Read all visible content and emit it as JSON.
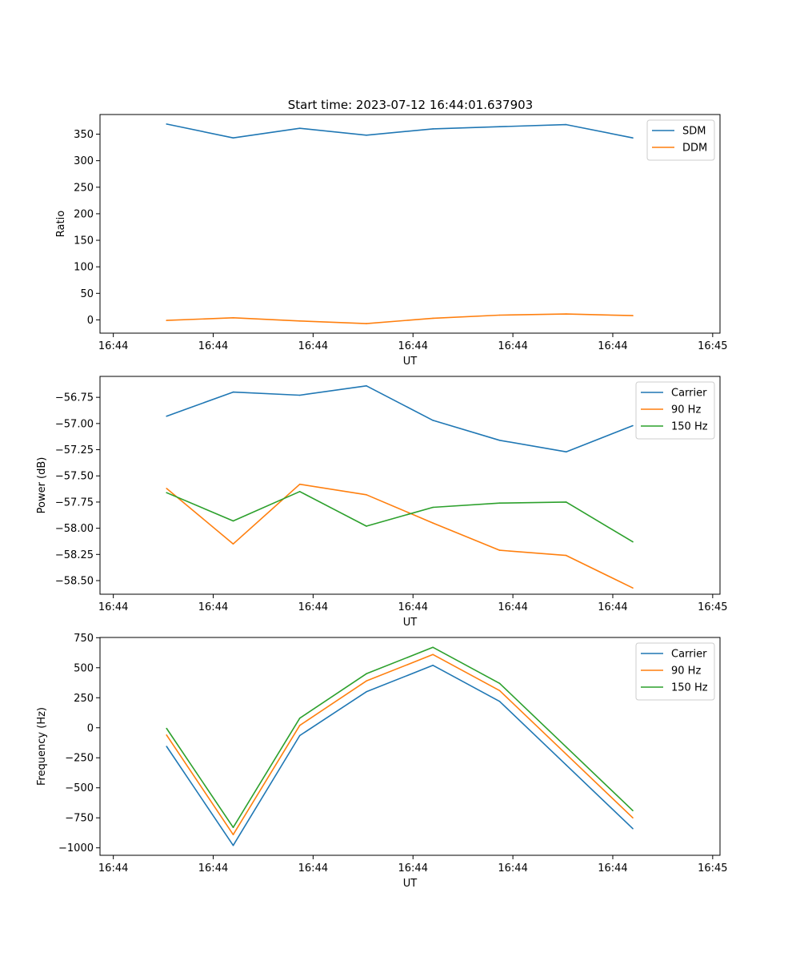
{
  "figure": {
    "title": "Start time: 2023-07-12 16:44:01.637903"
  },
  "colors": {
    "blue": "#1f77b4",
    "orange": "#ff7f0e",
    "green": "#2ca02c",
    "axis": "#000000"
  },
  "chart_data": [
    {
      "type": "line",
      "id": "ratio",
      "title": "Start time: 2023-07-12 16:44:01.637903",
      "xlabel": "UT",
      "ylabel": "Ratio",
      "x_tick_labels": [
        "16:44",
        "16:44",
        "16:44",
        "16:44",
        "16:44",
        "16:44",
        "16:45"
      ],
      "x": [
        1,
        2,
        3,
        4,
        5,
        6,
        7,
        8
      ],
      "xlim": [
        0,
        9.31
      ],
      "ylim": [
        -25,
        387
      ],
      "yticks": [
        0,
        50,
        100,
        150,
        200,
        250,
        300,
        350
      ],
      "ytick_labels": [
        "0",
        "50",
        "100",
        "150",
        "200",
        "250",
        "300",
        "350"
      ],
      "legend_position": "top-right",
      "series": [
        {
          "name": "SDM",
          "color": "#1f77b4",
          "values": [
            369,
            343,
            361,
            348,
            360,
            364,
            368,
            343
          ]
        },
        {
          "name": "DDM",
          "color": "#ff7f0e",
          "values": [
            -1,
            4,
            -2,
            -7,
            3,
            9,
            11,
            8
          ]
        }
      ]
    },
    {
      "type": "line",
      "id": "power",
      "title": "",
      "xlabel": "UT",
      "ylabel": "Power (dB)",
      "x_tick_labels": [
        "16:44",
        "16:44",
        "16:44",
        "16:44",
        "16:44",
        "16:44",
        "16:45"
      ],
      "x": [
        1,
        2,
        3,
        4,
        5,
        6,
        7,
        8
      ],
      "xlim": [
        0,
        9.31
      ],
      "ylim": [
        -58.63,
        -56.55
      ],
      "yticks": [
        -58.5,
        -58.25,
        -58.0,
        -57.75,
        -57.5,
        -57.25,
        -57.0,
        -56.75
      ],
      "ytick_labels": [
        "−58.50",
        "−58.25",
        "−58.00",
        "−57.75",
        "−57.50",
        "−57.25",
        "−57.00",
        "−56.75"
      ],
      "legend_position": "top-right",
      "series": [
        {
          "name": "Carrier",
          "color": "#1f77b4",
          "values": [
            -56.93,
            -56.7,
            -56.73,
            -56.64,
            -56.97,
            -57.16,
            -57.27,
            -57.02
          ]
        },
        {
          "name": "90 Hz",
          "color": "#ff7f0e",
          "values": [
            -57.62,
            -58.15,
            -57.58,
            -57.68,
            -57.95,
            -58.21,
            -58.26,
            -58.57
          ]
        },
        {
          "name": "150 Hz",
          "color": "#2ca02c",
          "values": [
            -57.66,
            -57.93,
            -57.65,
            -57.98,
            -57.8,
            -57.76,
            -57.75,
            -58.13
          ]
        }
      ]
    },
    {
      "type": "line",
      "id": "frequency",
      "title": "",
      "xlabel": "UT",
      "ylabel": "Frequency (Hz)",
      "x_tick_labels": [
        "16:44",
        "16:44",
        "16:44",
        "16:44",
        "16:44",
        "16:44",
        "16:45"
      ],
      "x": [
        1,
        2,
        3,
        4,
        5,
        6,
        7,
        8
      ],
      "xlim": [
        0,
        9.31
      ],
      "ylim": [
        -1062,
        752
      ],
      "yticks": [
        -1000,
        -750,
        -500,
        -250,
        0,
        250,
        500,
        750
      ],
      "ytick_labels": [
        "−1000",
        "−750",
        "−500",
        "−250",
        "0",
        "250",
        "500",
        "750"
      ],
      "legend_position": "top-right",
      "series": [
        {
          "name": "Carrier",
          "color": "#1f77b4",
          "values": [
            -155,
            -980,
            -65,
            300,
            520,
            220,
            -310,
            -840
          ]
        },
        {
          "name": "90 Hz",
          "color": "#ff7f0e",
          "values": [
            -60,
            -890,
            20,
            390,
            610,
            310,
            -220,
            -750
          ]
        },
        {
          "name": "150 Hz",
          "color": "#2ca02c",
          "values": [
            -5,
            -830,
            80,
            450,
            670,
            370,
            -160,
            -690
          ]
        }
      ]
    }
  ]
}
